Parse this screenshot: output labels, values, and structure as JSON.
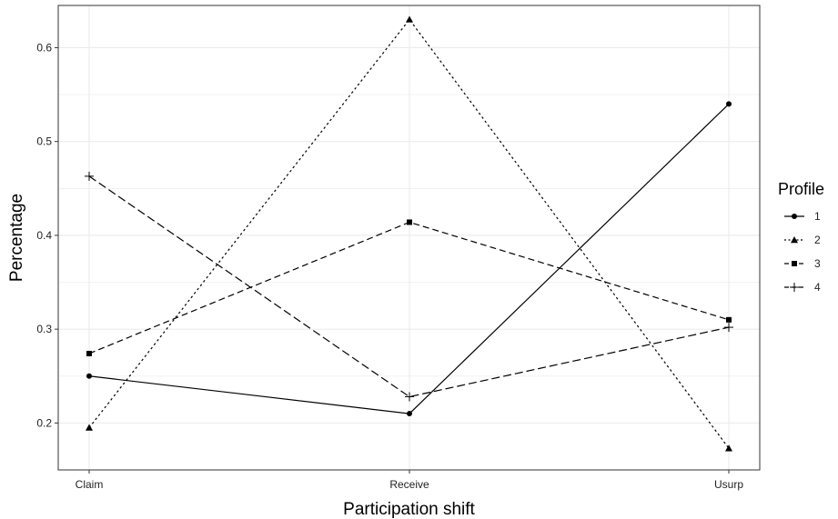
{
  "chart_data": {
    "type": "line",
    "xlabel": "Participation shift",
    "ylabel": "Percentage",
    "categories": [
      "Claim",
      "Receive",
      "Usurp"
    ],
    "ylim": [
      0.15,
      0.645
    ],
    "yticks": [
      0.2,
      0.3,
      0.4,
      0.5,
      0.6
    ],
    "ytick_labels": [
      "0.2",
      "0.3",
      "0.4",
      "0.5",
      "0.6"
    ],
    "grid": true,
    "legend": {
      "title": "Profile",
      "position": "right"
    },
    "series": [
      {
        "name": "1",
        "values": [
          0.25,
          0.21,
          0.54
        ],
        "dash": "solid",
        "marker": "circle"
      },
      {
        "name": "2",
        "values": [
          0.195,
          0.63,
          0.173
        ],
        "dash": "dotted",
        "marker": "triangle"
      },
      {
        "name": "3",
        "values": [
          0.274,
          0.414,
          0.31
        ],
        "dash": "dashed",
        "marker": "square"
      },
      {
        "name": "4",
        "values": [
          0.463,
          0.228,
          0.302
        ],
        "dash": "longdash",
        "marker": "plus"
      }
    ],
    "colors": {
      "line": "#000000",
      "grid": "#ebebeb",
      "panel_border": "#333333"
    }
  }
}
